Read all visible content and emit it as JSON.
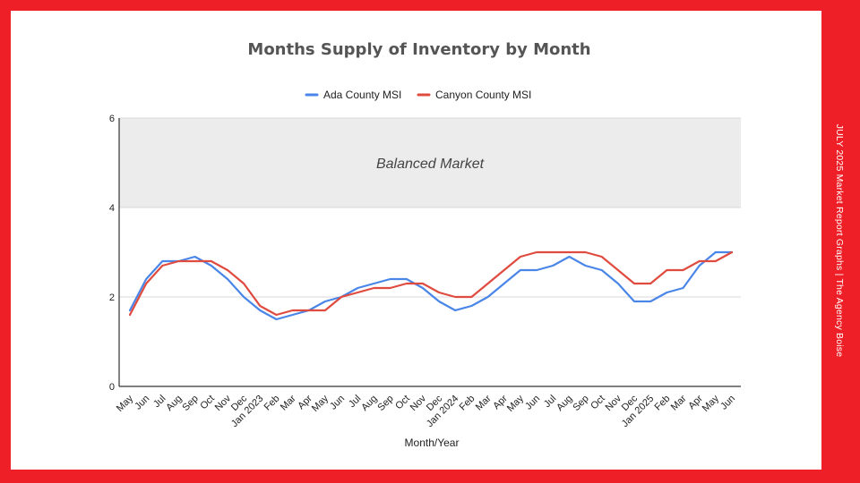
{
  "side_note": "JULY 2025 Market Report Graphs  |  The Agency Boise",
  "colors": {
    "background": "#ee1f26",
    "ada": "#4a86e8",
    "canyon": "#e04b3f",
    "band": "#ececec",
    "grid": "#d9d9d9"
  },
  "chart_data": {
    "type": "line",
    "title": "Months Supply of Inventory by Month",
    "xlabel": "Month/Year",
    "ylabel": "",
    "ylim": [
      0,
      6
    ],
    "yticks": [
      0,
      2,
      4,
      6
    ],
    "grid": true,
    "legend_position": "top",
    "band": {
      "from": 4,
      "to": 6,
      "label": "Balanced Market"
    },
    "categories": [
      "May",
      "Jun",
      "Jul",
      "Aug",
      "Sep",
      "Oct",
      "Nov",
      "Dec",
      "Jan 2023",
      "Feb",
      "Mar",
      "Apr",
      "May",
      "Jun",
      "Jul",
      "Aug",
      "Sep",
      "Oct",
      "Nov",
      "Dec",
      "Jan 2024",
      "Feb",
      "Mar",
      "Apr",
      "May",
      "Jun",
      "Jul",
      "Aug",
      "Sep",
      "Oct",
      "Nov",
      "Dec",
      "Jan 2025",
      "Feb",
      "Mar",
      "Apr",
      "May",
      "Jun"
    ],
    "series": [
      {
        "name": "Ada County MSI",
        "color": "#4a86e8",
        "values": [
          1.7,
          2.4,
          2.8,
          2.8,
          2.9,
          2.7,
          2.4,
          2.0,
          1.7,
          1.5,
          1.6,
          1.7,
          1.9,
          2.0,
          2.2,
          2.3,
          2.4,
          2.4,
          2.2,
          1.9,
          1.7,
          1.8,
          2.0,
          2.3,
          2.6,
          2.6,
          2.7,
          2.9,
          2.7,
          2.6,
          2.3,
          1.9,
          1.9,
          2.1,
          2.2,
          2.7,
          3.0,
          3.0
        ]
      },
      {
        "name": "Canyon County MSI",
        "color": "#e04b3f",
        "values": [
          1.6,
          2.3,
          2.7,
          2.8,
          2.8,
          2.8,
          2.6,
          2.3,
          1.8,
          1.6,
          1.7,
          1.7,
          1.7,
          2.0,
          2.1,
          2.2,
          2.2,
          2.3,
          2.3,
          2.1,
          2.0,
          2.0,
          2.3,
          2.6,
          2.9,
          3.0,
          3.0,
          3.0,
          3.0,
          2.9,
          2.6,
          2.3,
          2.3,
          2.6,
          2.6,
          2.8,
          2.8,
          3.0
        ]
      }
    ]
  }
}
